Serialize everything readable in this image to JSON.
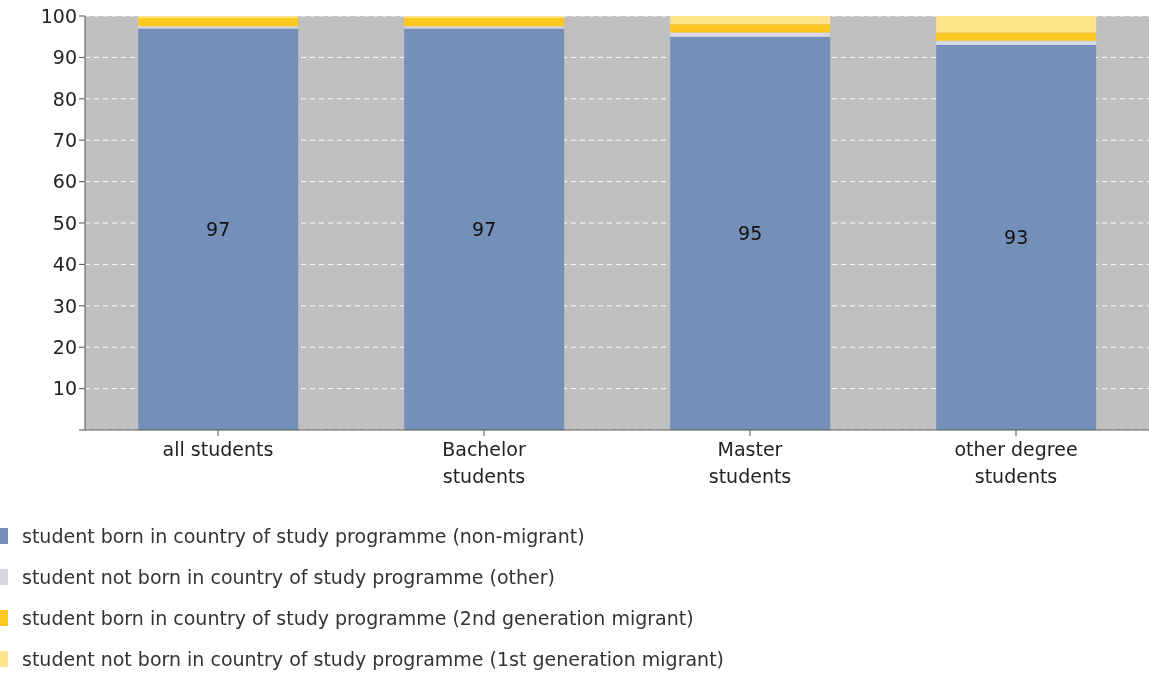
{
  "chart_data": {
    "type": "bar",
    "stacked": true,
    "categories": [
      "all students",
      "Bachelor students",
      "Master students",
      "other degree students"
    ],
    "series": [
      {
        "name": "student born in country of study programme (non-migrant)",
        "color": "#7590b8",
        "values": [
          97,
          97,
          95,
          93
        ],
        "value_labels": [
          "97",
          "97",
          "95",
          "93"
        ]
      },
      {
        "name": "student not born in country of study programme (other)",
        "color": "#d3d8e2",
        "values": [
          0.5,
          0.5,
          1,
          1
        ]
      },
      {
        "name": "student born in country of study programme (2nd generation migrant)",
        "color": "#ffc820",
        "values": [
          2,
          2,
          2,
          2
        ]
      },
      {
        "name": "student not born in country of study programme (1st generation migrant)",
        "color": "#ffe38a",
        "values": [
          0.5,
          0.5,
          2,
          4
        ]
      }
    ],
    "ylim": [
      0,
      100
    ],
    "yticks": [
      {
        "value": 0,
        "label": null
      },
      10,
      20,
      30,
      40,
      50,
      60,
      70,
      80,
      90,
      100
    ],
    "grid": "y",
    "legend": "bottom"
  }
}
